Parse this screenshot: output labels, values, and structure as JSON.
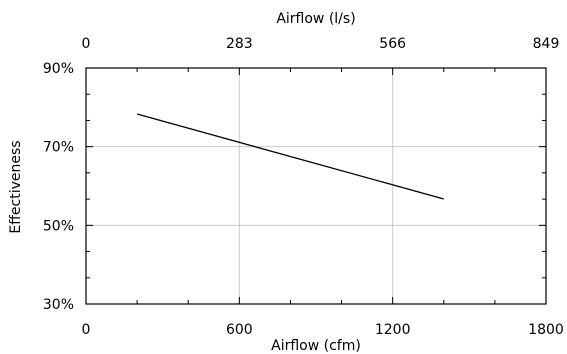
{
  "chart_data": {
    "type": "line",
    "xlabel": "Airflow (cfm)",
    "x2label": "Airflow (l/s)",
    "ylabel": "Effectiveness",
    "xlim": [
      0,
      1800
    ],
    "ylim": [
      30,
      90
    ],
    "x_ticks": [
      {
        "value": 0,
        "label": "0"
      },
      {
        "value": 600,
        "label": "600"
      },
      {
        "value": 1200,
        "label": "1200"
      },
      {
        "value": 1800,
        "label": "1800"
      }
    ],
    "x2_ticks": [
      {
        "value": 0,
        "label": "0"
      },
      {
        "value": 600,
        "label": "283"
      },
      {
        "value": 1200,
        "label": "566"
      },
      {
        "value": 1800,
        "label": "849"
      }
    ],
    "y_ticks": [
      {
        "value": 30,
        "label": "30%"
      },
      {
        "value": 50,
        "label": "50%"
      },
      {
        "value": 70,
        "label": "70%"
      },
      {
        "value": 90,
        "label": "90%"
      }
    ],
    "grid": true,
    "series": [
      {
        "x": [
          200,
          1400
        ],
        "y": [
          78.3,
          56.7
        ]
      }
    ],
    "line_color": "#000000",
    "grid_color": "#c8c8c8"
  }
}
